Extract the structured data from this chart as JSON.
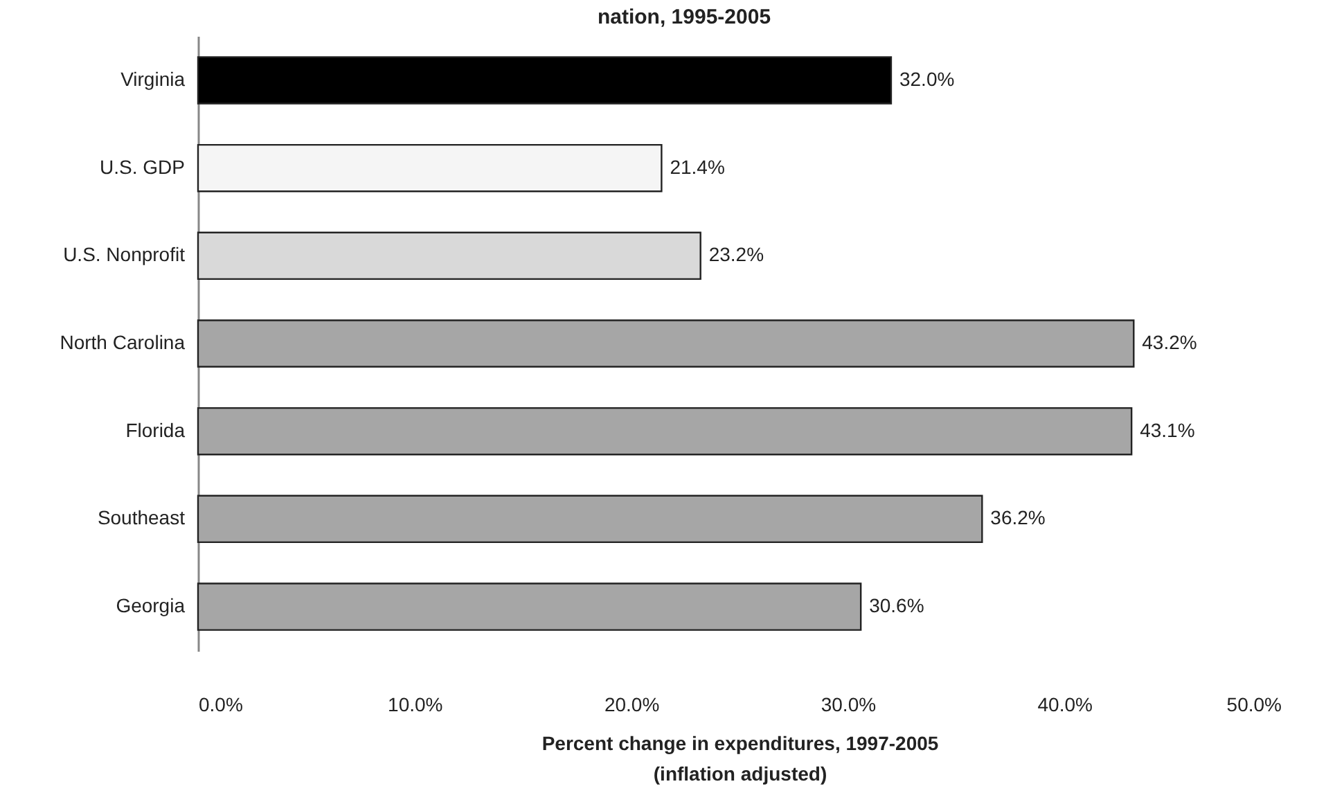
{
  "chart_data": {
    "type": "bar",
    "orientation": "horizontal",
    "title": "nation, 1995-2005",
    "xlabel": "Percent change in expenditures, 1997-2005\n(inflation adjusted)",
    "categories": [
      "Virginia",
      "U.S. GDP",
      "U.S. Nonprofit",
      "North Carolina",
      "Florida",
      "Southeast",
      "Georgia"
    ],
    "values": [
      32.0,
      21.4,
      23.2,
      43.2,
      43.1,
      36.2,
      30.6
    ],
    "colors": [
      "#000000",
      "#f5f5f5",
      "#d9d9d9",
      "#a6a6a6",
      "#a6a6a6",
      "#a6a6a6",
      "#a6a6a6"
    ],
    "value_labels": [
      "32.0%",
      "21.4%",
      "23.2%",
      "43.2%",
      "43.1%",
      "36.2%",
      "30.6%"
    ],
    "xlim": [
      0,
      50
    ],
    "xticks": [
      {
        "value": 0,
        "label": "0.0%"
      },
      {
        "value": 10,
        "label": "10.0%"
      },
      {
        "value": 20,
        "label": "20.0%"
      },
      {
        "value": 30,
        "label": "30.0%"
      },
      {
        "value": 40,
        "label": "40.0%"
      },
      {
        "value": 50,
        "label": "50.0%"
      }
    ]
  }
}
